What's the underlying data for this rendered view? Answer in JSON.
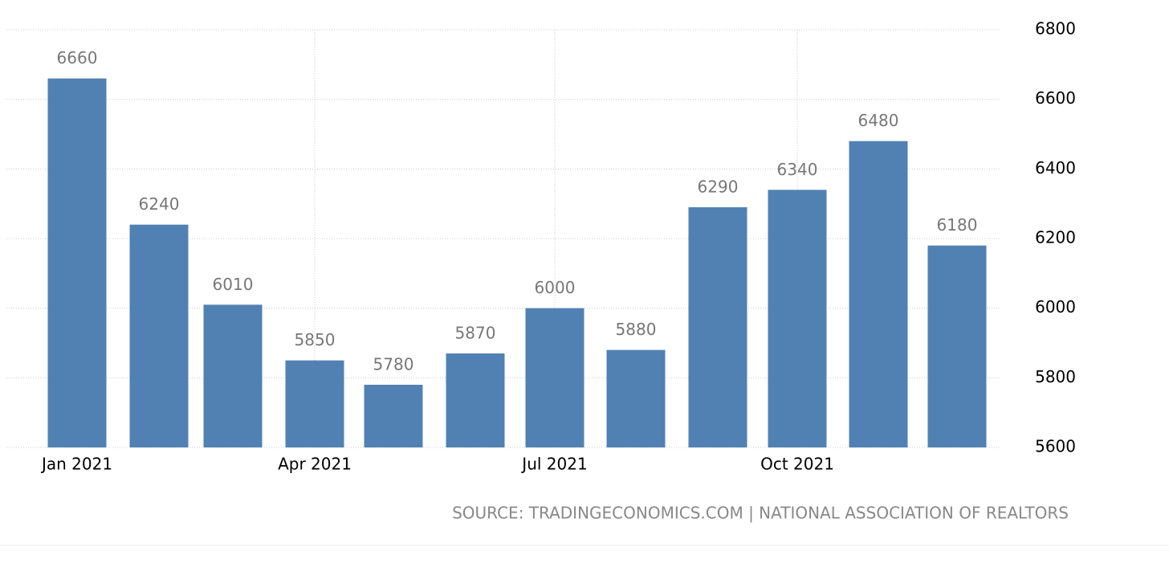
{
  "chart_data": {
    "type": "bar",
    "categories": [
      "Jan 2021",
      null,
      null,
      "Apr 2021",
      null,
      null,
      "Jul 2021",
      null,
      null,
      "Oct 2021",
      null,
      null
    ],
    "values": [
      6660,
      6240,
      6010,
      5850,
      5780,
      5870,
      6000,
      5880,
      6290,
      6340,
      6480,
      6180
    ],
    "color": "#5181b3",
    "ylim": [
      5600,
      6800
    ],
    "yticks": [
      5600,
      5800,
      6000,
      6200,
      6400,
      6600,
      6800
    ],
    "grid": true,
    "source": "SOURCE: TRADINGECONOMICS.COM | NATIONAL ASSOCIATION OF REALTORS"
  }
}
